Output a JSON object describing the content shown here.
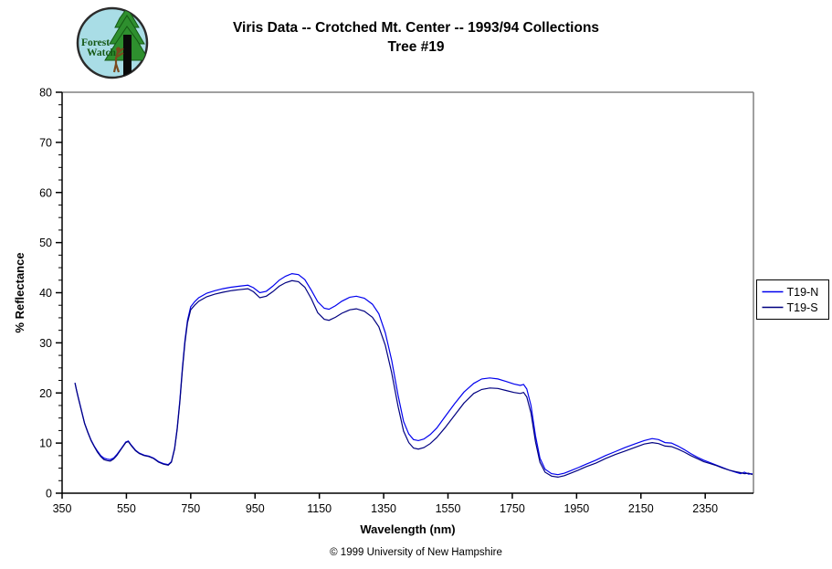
{
  "header": {
    "title_line1": "Viris Data -- Crotched Mt. Center -- 1993/94 Collections",
    "title_line2": "Tree #19",
    "logo": {
      "line1": "Forest",
      "line2": "Watch"
    }
  },
  "footer": {
    "copyright": "© 1999 University of New Hampshire"
  },
  "chart_data": {
    "type": "line",
    "title": "Viris Data -- Crotched Mt. Center -- 1993/94 Collections",
    "subtitle": "Tree #19",
    "xlabel": "Wavelength (nm)",
    "ylabel": "% Reflectance",
    "xlim": [
      350,
      2500
    ],
    "ylim": [
      0,
      80
    ],
    "x_ticks": [
      350,
      550,
      750,
      950,
      1150,
      1350,
      1550,
      1750,
      1950,
      2150,
      2350
    ],
    "y_ticks": [
      0,
      10,
      20,
      30,
      40,
      50,
      60,
      70,
      80
    ],
    "y_minor_step": 2.5,
    "grid": false,
    "legend_position": "right-outside",
    "border_color": "#808080",
    "axis_color": "#000000",
    "series": [
      {
        "name": "T19-N",
        "color": "#0000ee",
        "points": [
          [
            390,
            22.0
          ],
          [
            395,
            20.6
          ],
          [
            400,
            19.2
          ],
          [
            410,
            16.6
          ],
          [
            420,
            14.0
          ],
          [
            430,
            12.2
          ],
          [
            440,
            10.6
          ],
          [
            450,
            9.4
          ],
          [
            460,
            8.4
          ],
          [
            470,
            7.5
          ],
          [
            480,
            7.0
          ],
          [
            490,
            6.8
          ],
          [
            500,
            6.7
          ],
          [
            510,
            7.0
          ],
          [
            520,
            7.7
          ],
          [
            535,
            9.0
          ],
          [
            548,
            10.2
          ],
          [
            556,
            10.4
          ],
          [
            565,
            9.6
          ],
          [
            578,
            8.6
          ],
          [
            590,
            8.0
          ],
          [
            605,
            7.6
          ],
          [
            620,
            7.4
          ],
          [
            635,
            7.0
          ],
          [
            650,
            6.3
          ],
          [
            665,
            5.9
          ],
          [
            680,
            5.7
          ],
          [
            690,
            6.3
          ],
          [
            700,
            9.0
          ],
          [
            708,
            13.0
          ],
          [
            716,
            18.5
          ],
          [
            724,
            25.0
          ],
          [
            732,
            30.5
          ],
          [
            740,
            34.5
          ],
          [
            750,
            37.2
          ],
          [
            762,
            38.2
          ],
          [
            775,
            39.0
          ],
          [
            800,
            39.9
          ],
          [
            825,
            40.4
          ],
          [
            850,
            40.8
          ],
          [
            875,
            41.1
          ],
          [
            900,
            41.3
          ],
          [
            928,
            41.5
          ],
          [
            945,
            41.0
          ],
          [
            965,
            40.0
          ],
          [
            985,
            40.3
          ],
          [
            1005,
            41.3
          ],
          [
            1025,
            42.5
          ],
          [
            1045,
            43.3
          ],
          [
            1065,
            43.8
          ],
          [
            1085,
            43.6
          ],
          [
            1105,
            42.6
          ],
          [
            1125,
            40.5
          ],
          [
            1145,
            38.2
          ],
          [
            1165,
            36.9
          ],
          [
            1180,
            36.7
          ],
          [
            1200,
            37.4
          ],
          [
            1220,
            38.3
          ],
          [
            1245,
            39.1
          ],
          [
            1265,
            39.3
          ],
          [
            1290,
            38.9
          ],
          [
            1315,
            37.7
          ],
          [
            1335,
            35.8
          ],
          [
            1355,
            32.0
          ],
          [
            1375,
            26.5
          ],
          [
            1395,
            19.5
          ],
          [
            1412,
            14.3
          ],
          [
            1428,
            11.8
          ],
          [
            1443,
            10.7
          ],
          [
            1458,
            10.5
          ],
          [
            1475,
            10.8
          ],
          [
            1495,
            11.7
          ],
          [
            1515,
            13.0
          ],
          [
            1540,
            15.2
          ],
          [
            1570,
            17.8
          ],
          [
            1600,
            20.2
          ],
          [
            1630,
            21.9
          ],
          [
            1655,
            22.8
          ],
          [
            1680,
            23.0
          ],
          [
            1705,
            22.8
          ],
          [
            1730,
            22.3
          ],
          [
            1755,
            21.8
          ],
          [
            1775,
            21.5
          ],
          [
            1785,
            21.7
          ],
          [
            1795,
            20.8
          ],
          [
            1808,
            17.5
          ],
          [
            1822,
            11.5
          ],
          [
            1836,
            7.0
          ],
          [
            1852,
            4.8
          ],
          [
            1872,
            3.9
          ],
          [
            1892,
            3.7
          ],
          [
            1912,
            4.0
          ],
          [
            1932,
            4.5
          ],
          [
            1955,
            5.1
          ],
          [
            1980,
            5.8
          ],
          [
            2010,
            6.6
          ],
          [
            2040,
            7.5
          ],
          [
            2070,
            8.3
          ],
          [
            2100,
            9.1
          ],
          [
            2130,
            9.8
          ],
          [
            2160,
            10.5
          ],
          [
            2185,
            10.9
          ],
          [
            2205,
            10.7
          ],
          [
            2225,
            10.1
          ],
          [
            2245,
            10.0
          ],
          [
            2265,
            9.4
          ],
          [
            2285,
            8.7
          ],
          [
            2305,
            7.9
          ],
          [
            2325,
            7.2
          ],
          [
            2345,
            6.6
          ],
          [
            2365,
            6.1
          ],
          [
            2385,
            5.6
          ],
          [
            2405,
            5.1
          ],
          [
            2425,
            4.6
          ],
          [
            2445,
            4.2
          ],
          [
            2460,
            3.9
          ],
          [
            2472,
            4.2
          ],
          [
            2485,
            3.8
          ],
          [
            2497,
            3.9
          ]
        ]
      },
      {
        "name": "T19-S",
        "color": "#000080",
        "points": [
          [
            390,
            22.0
          ],
          [
            395,
            20.5
          ],
          [
            400,
            19.1
          ],
          [
            410,
            16.5
          ],
          [
            420,
            13.9
          ],
          [
            430,
            12.1
          ],
          [
            440,
            10.5
          ],
          [
            450,
            9.3
          ],
          [
            460,
            8.2
          ],
          [
            470,
            7.3
          ],
          [
            480,
            6.7
          ],
          [
            490,
            6.5
          ],
          [
            500,
            6.4
          ],
          [
            510,
            6.8
          ],
          [
            520,
            7.5
          ],
          [
            535,
            8.9
          ],
          [
            548,
            10.1
          ],
          [
            556,
            10.3
          ],
          [
            565,
            9.5
          ],
          [
            578,
            8.5
          ],
          [
            590,
            7.9
          ],
          [
            605,
            7.5
          ],
          [
            620,
            7.3
          ],
          [
            635,
            6.9
          ],
          [
            650,
            6.2
          ],
          [
            665,
            5.8
          ],
          [
            680,
            5.6
          ],
          [
            690,
            6.2
          ],
          [
            700,
            8.8
          ],
          [
            708,
            12.7
          ],
          [
            716,
            18.1
          ],
          [
            724,
            24.5
          ],
          [
            732,
            30.0
          ],
          [
            740,
            34.0
          ],
          [
            750,
            36.6
          ],
          [
            762,
            37.5
          ],
          [
            775,
            38.3
          ],
          [
            800,
            39.2
          ],
          [
            825,
            39.7
          ],
          [
            850,
            40.1
          ],
          [
            875,
            40.4
          ],
          [
            900,
            40.6
          ],
          [
            928,
            40.8
          ],
          [
            945,
            40.2
          ],
          [
            965,
            39.0
          ],
          [
            985,
            39.3
          ],
          [
            1005,
            40.2
          ],
          [
            1025,
            41.3
          ],
          [
            1045,
            42.0
          ],
          [
            1065,
            42.4
          ],
          [
            1085,
            42.2
          ],
          [
            1105,
            41.1
          ],
          [
            1125,
            38.8
          ],
          [
            1145,
            36.0
          ],
          [
            1165,
            34.7
          ],
          [
            1180,
            34.5
          ],
          [
            1200,
            35.1
          ],
          [
            1220,
            35.9
          ],
          [
            1245,
            36.6
          ],
          [
            1265,
            36.8
          ],
          [
            1290,
            36.3
          ],
          [
            1315,
            35.1
          ],
          [
            1335,
            33.2
          ],
          [
            1355,
            29.5
          ],
          [
            1375,
            24.0
          ],
          [
            1395,
            17.3
          ],
          [
            1412,
            12.4
          ],
          [
            1428,
            10.1
          ],
          [
            1443,
            9.0
          ],
          [
            1458,
            8.8
          ],
          [
            1475,
            9.1
          ],
          [
            1495,
            9.9
          ],
          [
            1515,
            11.1
          ],
          [
            1540,
            13.0
          ],
          [
            1570,
            15.5
          ],
          [
            1600,
            18.0
          ],
          [
            1630,
            19.9
          ],
          [
            1655,
            20.7
          ],
          [
            1680,
            21.0
          ],
          [
            1705,
            20.9
          ],
          [
            1730,
            20.5
          ],
          [
            1755,
            20.1
          ],
          [
            1775,
            19.9
          ],
          [
            1785,
            20.1
          ],
          [
            1795,
            19.2
          ],
          [
            1808,
            16.0
          ],
          [
            1822,
            10.3
          ],
          [
            1836,
            6.2
          ],
          [
            1852,
            4.2
          ],
          [
            1872,
            3.4
          ],
          [
            1892,
            3.2
          ],
          [
            1912,
            3.5
          ],
          [
            1932,
            4.0
          ],
          [
            1955,
            4.6
          ],
          [
            1980,
            5.3
          ],
          [
            2010,
            6.0
          ],
          [
            2040,
            6.9
          ],
          [
            2070,
            7.7
          ],
          [
            2100,
            8.4
          ],
          [
            2130,
            9.1
          ],
          [
            2160,
            9.8
          ],
          [
            2185,
            10.1
          ],
          [
            2205,
            9.9
          ],
          [
            2225,
            9.4
          ],
          [
            2245,
            9.3
          ],
          [
            2265,
            8.8
          ],
          [
            2285,
            8.2
          ],
          [
            2305,
            7.5
          ],
          [
            2325,
            6.9
          ],
          [
            2345,
            6.3
          ],
          [
            2365,
            5.9
          ],
          [
            2385,
            5.5
          ],
          [
            2405,
            5.0
          ],
          [
            2425,
            4.6
          ],
          [
            2445,
            4.3
          ],
          [
            2460,
            4.1
          ],
          [
            2472,
            3.9
          ],
          [
            2485,
            4.0
          ],
          [
            2497,
            3.7
          ]
        ]
      }
    ]
  }
}
